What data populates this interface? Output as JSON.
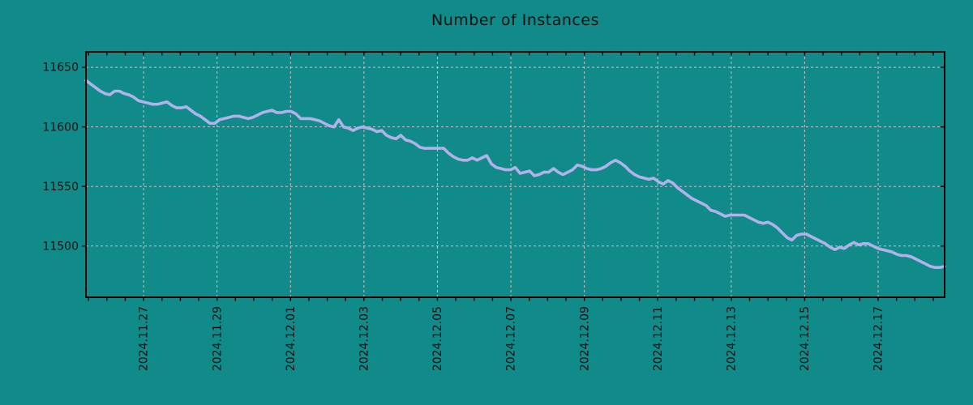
{
  "title": "Number of Instances",
  "colors": {
    "background": "#118a8a",
    "line": "#b2b2ea",
    "grid": "#b9c7c7",
    "axis": "#000000",
    "text": "#111111"
  },
  "chart_data": {
    "type": "line",
    "title": "Number of Instances",
    "xlabel": "",
    "ylabel": "",
    "legend": "none",
    "grid": "dashed-major",
    "x_origin_date": "2024-11-25",
    "x_domain_days": [
      0.43,
      23.81
    ],
    "y_domain": [
      11457,
      11663
    ],
    "y_ticks": [
      11500,
      11550,
      11600,
      11650
    ],
    "x_tick_positions_days": [
      2,
      4,
      6,
      8,
      10,
      12,
      14,
      16,
      18,
      20,
      22
    ],
    "x_tick_labels": [
      "2024.11.27",
      "2024.11.29",
      "2024.12.01",
      "2024.12.03",
      "2024.12.05",
      "2024.12.07",
      "2024.12.09",
      "2024.12.11",
      "2024.12.13",
      "2024.12.15",
      "2024.12.17"
    ],
    "x_minor_step_days": 0.5,
    "x_spacing": "uniform",
    "series": [
      {
        "name": "instances",
        "values": [
          11639,
          11636,
          11633,
          11630,
          11628,
          11627,
          11630,
          11630,
          11628,
          11627,
          11625,
          11622,
          11621,
          11620,
          11619,
          11619,
          11620,
          11621,
          11618,
          11616,
          11616,
          11617,
          11614,
          11611,
          11609,
          11606,
          11603,
          11603,
          11606,
          11607,
          11608,
          11609,
          11609,
          11608,
          11607,
          11608,
          11610,
          11612,
          11613,
          11614,
          11612,
          11612,
          11613,
          11613,
          11611,
          11607,
          11607,
          11607,
          11606,
          11605,
          11603,
          11601,
          11600,
          11606,
          11600,
          11599,
          11597,
          11599,
          11600,
          11599,
          11598,
          11596,
          11597,
          11593,
          11591,
          11590,
          11593,
          11589,
          11588,
          11586,
          11583,
          11582,
          11582,
          11582,
          11582,
          11582,
          11578,
          11575,
          11573,
          11572,
          11572,
          11574,
          11572,
          11574,
          11576,
          11569,
          11566,
          11565,
          11564,
          11564,
          11566,
          11561,
          11562,
          11563,
          11559,
          11560,
          11562,
          11562,
          11565,
          11562,
          11560,
          11562,
          11564,
          11568,
          11567,
          11565,
          11564,
          11564,
          11565,
          11567,
          11570,
          11572,
          11570,
          11567,
          11563,
          11560,
          11558,
          11557,
          11556,
          11557,
          11554,
          11552,
          11555,
          11553,
          11549,
          11546,
          11543,
          11540,
          11538,
          11536,
          11534,
          11530,
          11529,
          11527,
          11525,
          11526,
          11526,
          11526,
          11526,
          11524,
          11522,
          11520,
          11519,
          11520,
          11518,
          11515,
          11511,
          11507,
          11505,
          11509,
          11510,
          11510,
          11508,
          11506,
          11504,
          11502,
          11499,
          11497,
          11499,
          11498,
          11501,
          11503,
          11501,
          11502,
          11502,
          11500,
          11498,
          11497,
          11496,
          11495,
          11493,
          11492,
          11492,
          11491,
          11489,
          11487,
          11485,
          11483,
          11482,
          11482,
          11483
        ]
      }
    ]
  }
}
